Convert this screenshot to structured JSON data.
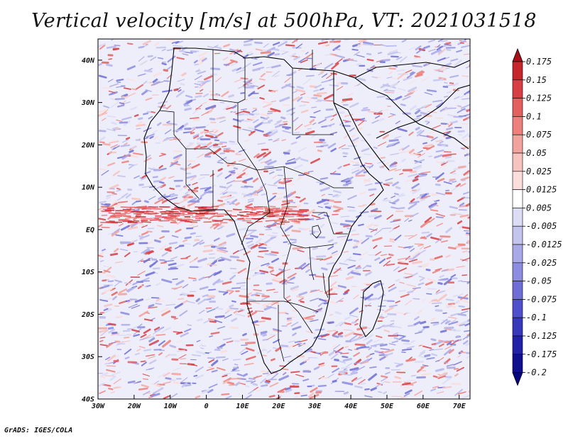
{
  "title": "Vertical velocity [m/s] at 500hPa, VT: 2021031518",
  "footer": "GrADS: IGES/COLA",
  "map": {
    "region": "Africa",
    "lon_labels": [
      "30W",
      "20W",
      "10W",
      "0",
      "10E",
      "20E",
      "30E",
      "40E",
      "50E",
      "60E",
      "70E"
    ],
    "lat_labels": [
      "40N",
      "30N",
      "20N",
      "10N",
      "EQ",
      "10S",
      "20S",
      "30S",
      "40S"
    ]
  },
  "colorbar": {
    "levels": [
      "0.175",
      "0.15",
      "0.125",
      "0.1",
      "0.075",
      "0.05",
      "0.025",
      "0.0125",
      "0.005",
      "-0.005",
      "-0.0125",
      "-0.025",
      "-0.05",
      "-0.075",
      "-0.1",
      "-0.125",
      "-0.175",
      "-0.2"
    ],
    "colors": [
      "#a50f15",
      "#c4262c",
      "#d64045",
      "#e3605f",
      "#ec807c",
      "#f2a39e",
      "#f7c3bf",
      "#fbdedb",
      "#ffffff",
      "#dcdcf4",
      "#c4c4ee",
      "#a9a9e8",
      "#8c8ce0",
      "#6e6ed6",
      "#5050cc",
      "#3838bb",
      "#2222a8",
      "#10108f",
      "#060680"
    ]
  },
  "colors": {
    "upward": "#d63b3b",
    "downward": "#5a5ad8",
    "land_line": "#000000"
  }
}
